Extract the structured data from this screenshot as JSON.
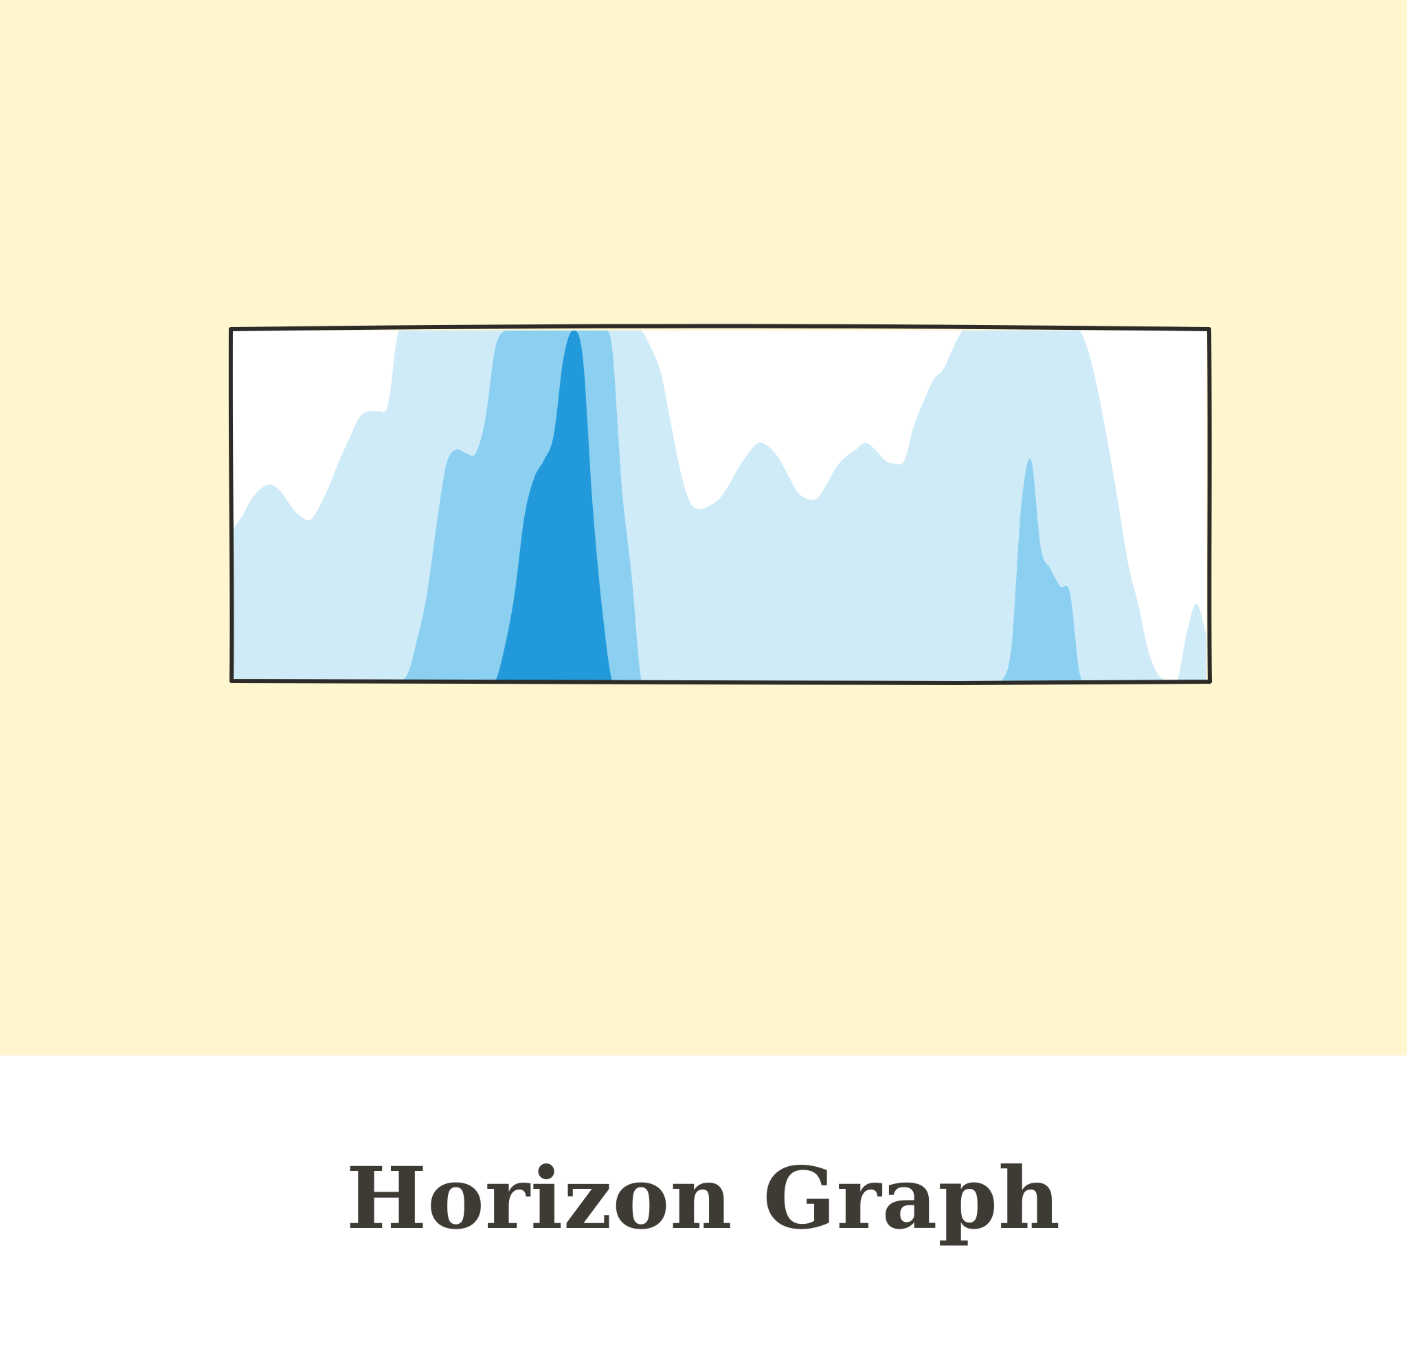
{
  "caption": "Horizon Graph",
  "colors": {
    "background": "#fff6cf",
    "caption_background": "#ffffff",
    "frame_stroke": "#2d2b27",
    "plot_background": "#ffffff",
    "band_1": "#cfebf8",
    "band_2": "#8bd0f1",
    "band_3": "#2199da",
    "caption_text": "#3e3b35"
  },
  "chart_data": {
    "type": "area",
    "variant": "horizon",
    "title": "",
    "xlabel": "",
    "ylabel": "",
    "bands": 3,
    "band_size": 1,
    "ylim": [
      0,
      3
    ],
    "xlim": [
      0,
      100
    ],
    "grid": false,
    "legend": "none",
    "series": [
      {
        "x": [
          0,
          1,
          2,
          3,
          4,
          5,
          6,
          7,
          8,
          9,
          10,
          11,
          12,
          13,
          14,
          15,
          16,
          17,
          18,
          19,
          20,
          21,
          22,
          23,
          24,
          25,
          26,
          27,
          28,
          29,
          30,
          31,
          32,
          33,
          34,
          35,
          36,
          37,
          38,
          39,
          40,
          41,
          42,
          43,
          44,
          45,
          46,
          47,
          48,
          49,
          50,
          51,
          52,
          53,
          54,
          55,
          56,
          57,
          58,
          59,
          60,
          61,
          62,
          63,
          64,
          65,
          66,
          67,
          68,
          69,
          70,
          71,
          72,
          73,
          74,
          75,
          76,
          77,
          78,
          79,
          80,
          81,
          82,
          83,
          84,
          85,
          86,
          87,
          88,
          89,
          90,
          91,
          92,
          93,
          94,
          95,
          96,
          97,
          98,
          99,
          100
        ],
        "values": [
          0.43,
          0.47,
          0.52,
          0.55,
          0.56,
          0.54,
          0.5,
          0.47,
          0.46,
          0.5,
          0.56,
          0.63,
          0.69,
          0.75,
          0.77,
          0.77,
          0.79,
          0.99,
          1.02,
          1.12,
          1.25,
          1.45,
          1.62,
          1.66,
          1.65,
          1.65,
          1.75,
          1.95,
          2.1,
          2.25,
          2.47,
          2.58,
          2.63,
          2.7,
          2.92,
          3.0,
          2.92,
          2.5,
          2.2,
          1.95,
          1.55,
          1.3,
          1.0,
          0.95,
          0.88,
          0.74,
          0.6,
          0.51,
          0.49,
          0.5,
          0.52,
          0.56,
          0.61,
          0.65,
          0.68,
          0.67,
          0.64,
          0.59,
          0.54,
          0.52,
          0.52,
          0.56,
          0.61,
          0.64,
          0.66,
          0.68,
          0.66,
          0.63,
          0.62,
          0.63,
          0.73,
          0.8,
          0.86,
          0.89,
          0.95,
          1.0,
          1.0,
          1.0,
          1.0,
          1.0,
          1.1,
          1.5,
          1.63,
          1.38,
          1.32,
          1.27,
          1.25,
          1.02,
          0.93,
          0.81,
          0.66,
          0.5,
          0.33,
          0.22,
          0.09,
          0.02,
          0.0,
          0.0,
          0.14,
          0.22,
          0.13
        ]
      }
    ]
  }
}
